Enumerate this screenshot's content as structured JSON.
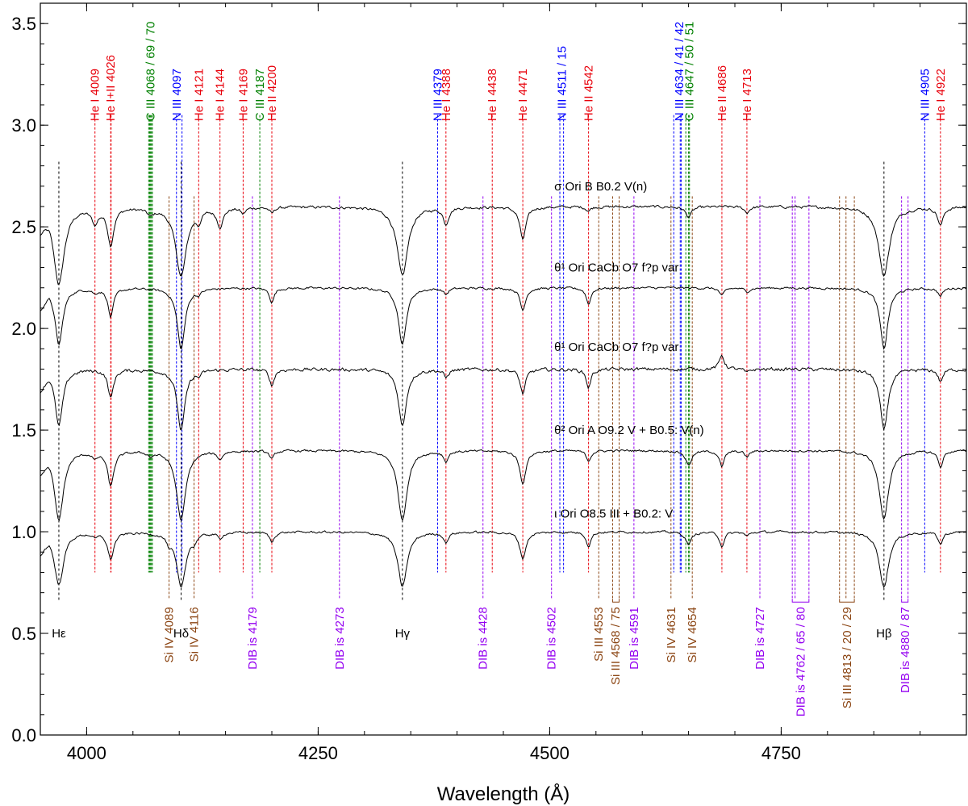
{
  "chart_data": {
    "type": "line",
    "xlabel": "Wavelength (Å)",
    "ylabel": "",
    "xlim": [
      3950,
      4950
    ],
    "ylim": [
      0.0,
      3.6
    ],
    "xticks": [
      {
        "value": 4000,
        "label": "4000"
      },
      {
        "value": 4250,
        "label": "4250"
      },
      {
        "value": 4500,
        "label": "4500"
      },
      {
        "value": 4750,
        "label": "4750"
      }
    ],
    "yticks": [
      {
        "value": 0.0,
        "label": "0.0"
      },
      {
        "value": 0.5,
        "label": "0.5"
      },
      {
        "value": 1.0,
        "label": "1.0"
      },
      {
        "value": 1.5,
        "label": "1.5"
      },
      {
        "value": 2.0,
        "label": "2.0"
      },
      {
        "value": 2.5,
        "label": "2.5"
      },
      {
        "value": 3.0,
        "label": "3.0"
      },
      {
        "value": 3.5,
        "label": "3.5"
      }
    ],
    "grid": false,
    "colors": {
      "red": "#e8000b",
      "green": "#008000",
      "blue": "#0000ff",
      "purple": "#9400f0",
      "brown": "#8b4513",
      "black": "#000000"
    },
    "balmer": [
      {
        "label": "Hε",
        "wl": 3970
      },
      {
        "label": "Hδ",
        "wl": 4102
      },
      {
        "label": "Hγ",
        "wl": 4341
      },
      {
        "label": "Hβ",
        "wl": 4861
      }
    ],
    "series": [
      {
        "name": "σ Ori B   B0.2 V(n)",
        "label_x": 4505,
        "label_y": 2.68,
        "continuum": 2.6,
        "noise": 0.012,
        "lines": [
          [
            3970,
            0.38,
            7
          ],
          [
            4009,
            0.07,
            4
          ],
          [
            4026,
            0.18,
            4
          ],
          [
            4069,
            0.03,
            4
          ],
          [
            4102,
            0.34,
            7
          ],
          [
            4121,
            0.05,
            3
          ],
          [
            4144,
            0.09,
            4
          ],
          [
            4169,
            0.03,
            3
          ],
          [
            4200,
            0.03,
            3
          ],
          [
            4341,
            0.34,
            7
          ],
          [
            4388,
            0.08,
            3.5
          ],
          [
            4471,
            0.16,
            4
          ],
          [
            4542,
            0.02,
            3
          ],
          [
            4650,
            0.05,
            4
          ],
          [
            4713,
            0.03,
            3
          ],
          [
            4861,
            0.34,
            7
          ],
          [
            4922,
            0.09,
            3.5
          ]
        ]
      },
      {
        "name": "θ¹ Ori CaCb   O7 f?p var",
        "label_x": 4505,
        "label_y": 2.28,
        "continuum": 2.2,
        "noise": 0.01,
        "lines": [
          [
            3970,
            0.28,
            5
          ],
          [
            4009,
            0.02,
            3
          ],
          [
            4026,
            0.14,
            3.5
          ],
          [
            4102,
            0.3,
            5
          ],
          [
            4121,
            0.02,
            3
          ],
          [
            4200,
            0.07,
            3
          ],
          [
            4341,
            0.28,
            5
          ],
          [
            4388,
            0.03,
            3
          ],
          [
            4471,
            0.11,
            3.5
          ],
          [
            4542,
            0.08,
            3
          ],
          [
            4686,
            0.04,
            3
          ],
          [
            4713,
            0.02,
            3
          ],
          [
            4861,
            0.3,
            5
          ],
          [
            4922,
            0.04,
            3
          ]
        ]
      },
      {
        "name": "θ¹ Ori CaCb   O7 f?p var",
        "label_x": 4505,
        "label_y": 1.89,
        "continuum": 1.8,
        "noise": 0.015,
        "lines": [
          [
            3970,
            0.28,
            5
          ],
          [
            4026,
            0.14,
            3.5
          ],
          [
            4102,
            0.3,
            5
          ],
          [
            4121,
            0.02,
            3
          ],
          [
            4200,
            0.08,
            3
          ],
          [
            4341,
            0.28,
            5
          ],
          [
            4388,
            0.04,
            3
          ],
          [
            4471,
            0.12,
            3.5
          ],
          [
            4542,
            0.09,
            3
          ],
          [
            4686,
            -0.07,
            3
          ],
          [
            4713,
            0.02,
            3
          ],
          [
            4861,
            0.3,
            5
          ],
          [
            4922,
            0.06,
            3
          ]
        ]
      },
      {
        "name": "θ² Ori A   O9.2 V + B0.5: V(n)",
        "label_x": 4505,
        "label_y": 1.48,
        "continuum": 1.4,
        "noise": 0.01,
        "lines": [
          [
            3970,
            0.34,
            6
          ],
          [
            4009,
            0.03,
            3
          ],
          [
            4026,
            0.17,
            4
          ],
          [
            4069,
            0.02,
            3
          ],
          [
            4102,
            0.34,
            6
          ],
          [
            4144,
            0.04,
            3
          ],
          [
            4200,
            0.04,
            3
          ],
          [
            4341,
            0.34,
            6
          ],
          [
            4388,
            0.05,
            3
          ],
          [
            4471,
            0.16,
            4
          ],
          [
            4542,
            0.05,
            3
          ],
          [
            4650,
            0.07,
            4
          ],
          [
            4686,
            0.08,
            3
          ],
          [
            4713,
            0.03,
            3
          ],
          [
            4861,
            0.34,
            6
          ],
          [
            4922,
            0.08,
            3
          ]
        ]
      },
      {
        "name": "ι Ori   O8.5 III + B0.2: V",
        "label_x": 4505,
        "label_y": 1.07,
        "continuum": 1.0,
        "noise": 0.01,
        "lines": [
          [
            3970,
            0.26,
            6
          ],
          [
            4009,
            0.02,
            3
          ],
          [
            4026,
            0.13,
            4
          ],
          [
            4089,
            0.04,
            2.5
          ],
          [
            4102,
            0.27,
            6
          ],
          [
            4116,
            0.03,
            2.5
          ],
          [
            4144,
            0.03,
            3
          ],
          [
            4200,
            0.05,
            3
          ],
          [
            4341,
            0.27,
            6
          ],
          [
            4388,
            0.05,
            3
          ],
          [
            4471,
            0.13,
            4
          ],
          [
            4542,
            0.07,
            3
          ],
          [
            4650,
            0.06,
            4
          ],
          [
            4686,
            0.07,
            3
          ],
          [
            4713,
            0.02,
            3
          ],
          [
            4861,
            0.27,
            6
          ],
          [
            4922,
            0.06,
            3
          ]
        ]
      }
    ],
    "top_labels": [
      {
        "text": "He I 4009",
        "wl": 4009,
        "color": "red",
        "marks": [
          4009
        ]
      },
      {
        "text": "He I+II 4026",
        "wl": 4026,
        "color": "red",
        "marks": [
          4026,
          4026.4
        ]
      },
      {
        "text": "C III 4068 / 69 / 70",
        "wl": 4069,
        "color": "green",
        "marks": [
          4067,
          4068,
          4069,
          4070,
          4071
        ]
      },
      {
        "text": "N III 4097",
        "wl": 4097,
        "color": "blue",
        "marks": [
          4097,
          4103
        ]
      },
      {
        "text": "He I 4121",
        "wl": 4121,
        "color": "red",
        "marks": [
          4121
        ]
      },
      {
        "text": "He I 4144",
        "wl": 4144,
        "color": "red",
        "marks": [
          4144
        ]
      },
      {
        "text": "He I 4169",
        "wl": 4169,
        "color": "red",
        "marks": [
          4169
        ]
      },
      {
        "text": "C III 4187",
        "wl": 4187,
        "color": "green",
        "marks": [
          4187
        ]
      },
      {
        "text": "He II 4200",
        "wl": 4200,
        "color": "red",
        "marks": [
          4200
        ]
      },
      {
        "text": "N III 4379",
        "wl": 4379,
        "color": "blue",
        "marks": [
          4379
        ]
      },
      {
        "text": "He I 4388",
        "wl": 4388,
        "color": "red",
        "marks": [
          4388
        ]
      },
      {
        "text": "He I 4438",
        "wl": 4438,
        "color": "red",
        "marks": [
          4438
        ]
      },
      {
        "text": "He I 4471",
        "wl": 4471,
        "color": "red",
        "marks": [
          4471
        ]
      },
      {
        "text": "N III 4511 / 15",
        "wl": 4513,
        "color": "blue",
        "marks": [
          4511,
          4515
        ]
      },
      {
        "text": "He II 4542",
        "wl": 4542,
        "color": "red",
        "marks": [
          4542
        ]
      },
      {
        "text": "N III 4634 / 41 / 42",
        "wl": 4640,
        "color": "blue",
        "marks": [
          4634,
          4641,
          4642
        ]
      },
      {
        "text": "C III 4647 / 50 / 51",
        "wl": 4651,
        "color": "green",
        "marks": [
          4647,
          4650,
          4651
        ]
      },
      {
        "text": "He II 4686",
        "wl": 4686,
        "color": "red",
        "marks": [
          4686
        ]
      },
      {
        "text": "He I 4713",
        "wl": 4713,
        "color": "red",
        "marks": [
          4713
        ]
      },
      {
        "text": "N III 4905",
        "wl": 4905,
        "color": "blue",
        "marks": [
          4905
        ]
      },
      {
        "text": "He I 4922",
        "wl": 4922,
        "color": "red",
        "marks": [
          4922
        ]
      }
    ],
    "bottom_labels": [
      {
        "text": "Si IV 4089",
        "wl": 4089,
        "color": "brown",
        "marks": [
          4089
        ]
      },
      {
        "text": "Si IV 4116",
        "wl": 4116,
        "color": "brown",
        "marks": [
          4116
        ]
      },
      {
        "text": "DIB is 4179",
        "wl": 4179,
        "color": "purple",
        "marks": [
          4179
        ]
      },
      {
        "text": "DIB is 4273",
        "wl": 4273,
        "color": "purple",
        "marks": [
          4273
        ]
      },
      {
        "text": "DIB is 4428",
        "wl": 4428,
        "color": "purple",
        "marks": [
          4428
        ]
      },
      {
        "text": "DIB is 4502",
        "wl": 4502,
        "color": "purple",
        "marks": [
          4502
        ]
      },
      {
        "text": "Si III 4553",
        "wl": 4553,
        "color": "brown",
        "marks": [
          4553
        ]
      },
      {
        "text": "Si III 4568 / 75",
        "wl": 4571,
        "color": "brown",
        "marks": [
          4568,
          4575
        ]
      },
      {
        "text": "DIB is 4591",
        "wl": 4591,
        "color": "purple",
        "marks": [
          4591
        ]
      },
      {
        "text": "Si IV 4631",
        "wl": 4631,
        "color": "brown",
        "marks": [
          4631
        ]
      },
      {
        "text": "Si IV 4654",
        "wl": 4654,
        "color": "brown",
        "marks": [
          4654
        ]
      },
      {
        "text": "DIB is 4727",
        "wl": 4727,
        "color": "purple",
        "marks": [
          4727
        ]
      },
      {
        "text": "DIB is 4762 / 65 / 80",
        "wl": 4771,
        "color": "purple",
        "marks": [
          4762,
          4765,
          4780
        ]
      },
      {
        "text": "Si III 4813 / 20 / 29",
        "wl": 4821,
        "color": "brown",
        "marks": [
          4813,
          4820,
          4829
        ]
      },
      {
        "text": "DIB is 4880 / 87",
        "wl": 4884,
        "color": "purple",
        "marks": [
          4880,
          4887
        ]
      }
    ]
  }
}
